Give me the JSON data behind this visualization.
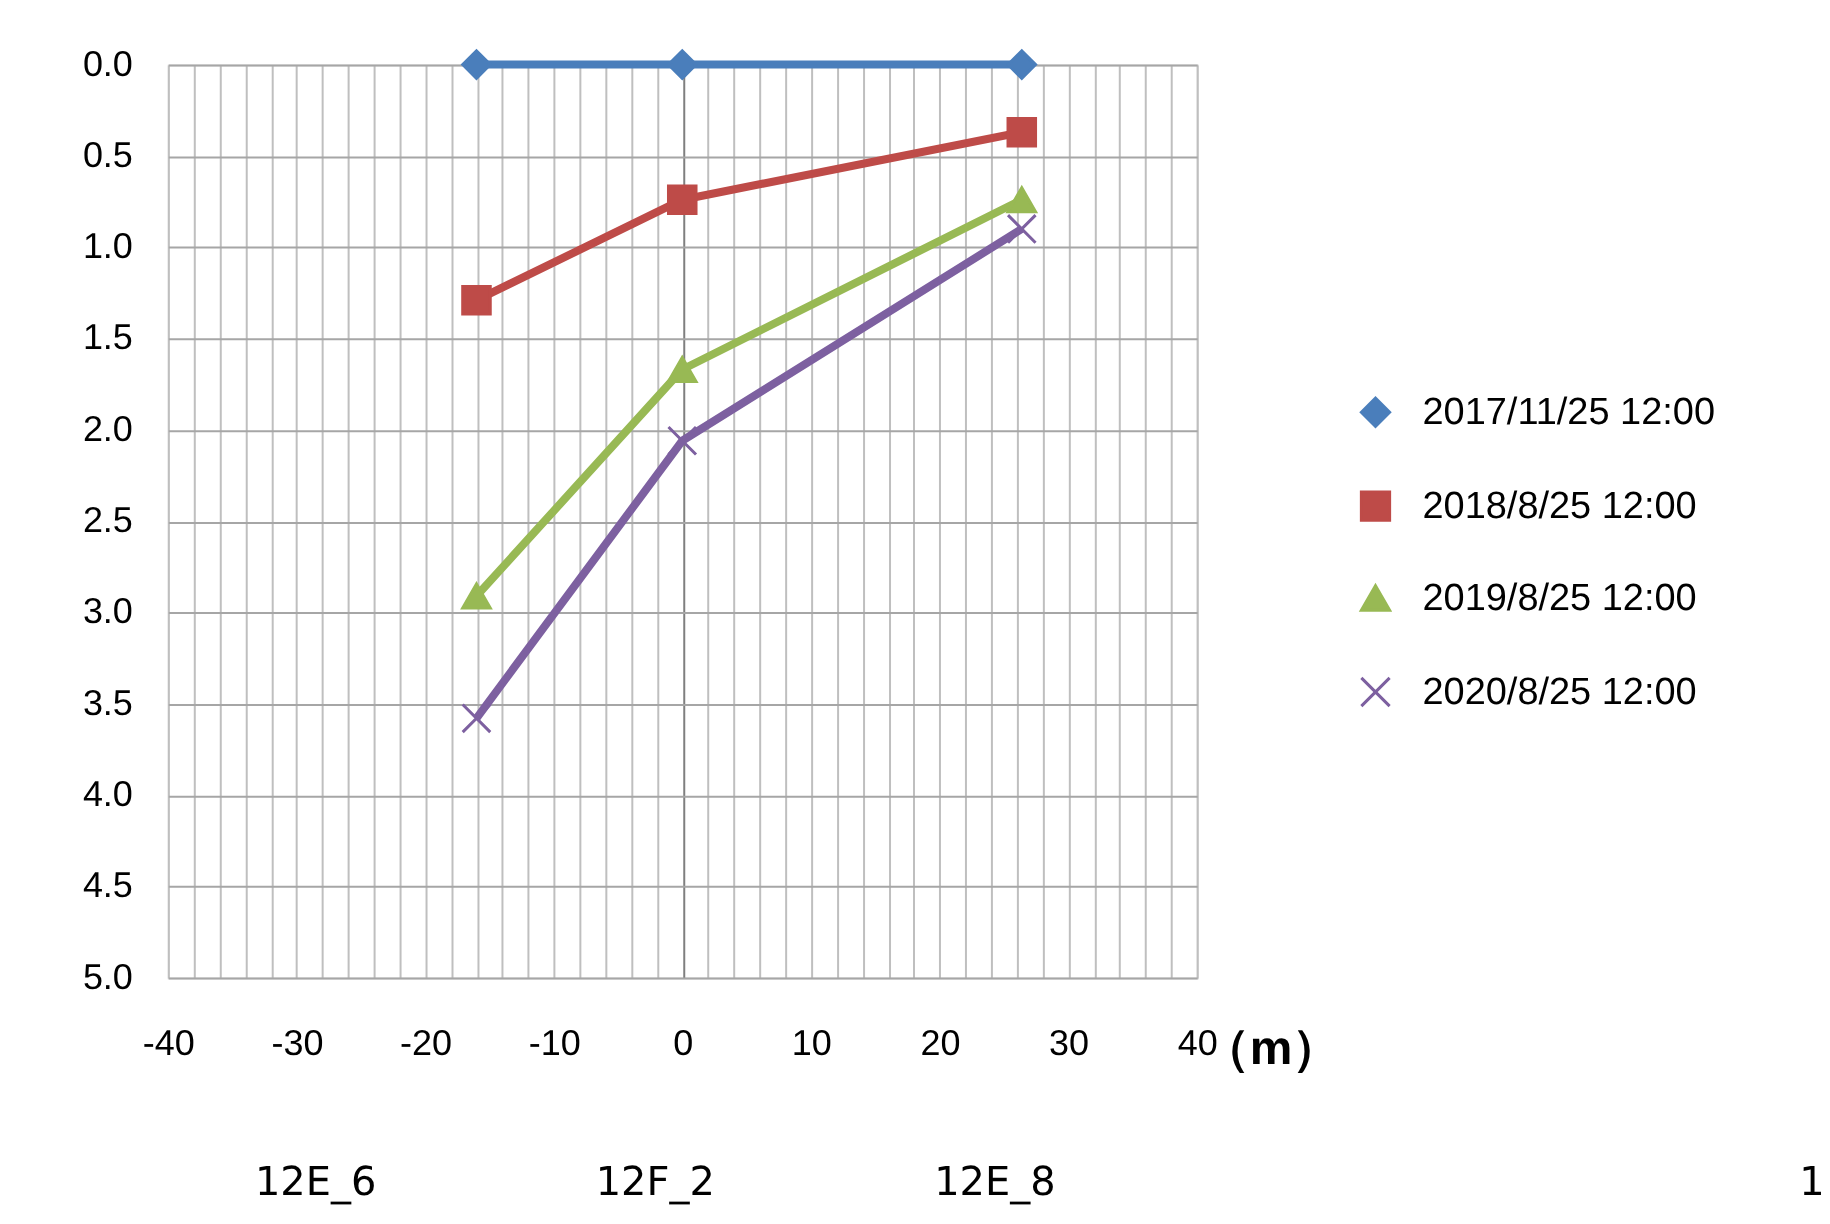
{
  "chart_data": {
    "type": "line",
    "xlabel": "（m）",
    "x": [
      -16,
      0,
      26.4
    ],
    "series": [
      {
        "name": "2017/11/25 12:00",
        "color": "#4a7ebb",
        "marker": "diamond",
        "values": [
          0,
          0,
          0
        ]
      },
      {
        "name": "2018/8/25 12:00",
        "color": "#be4b48",
        "marker": "square",
        "values": [
          1.29,
          0.74,
          0.37
        ]
      },
      {
        "name": "2019/8/25 12:00",
        "color": "#98b954",
        "marker": "triangle",
        "values": [
          2.91,
          1.67,
          0.74
        ]
      },
      {
        "name": "2020/8/25 12:00",
        "color": "#7d60a0",
        "marker": "cross",
        "values": [
          3.58,
          2.06,
          0.9
        ]
      }
    ],
    "xlim": [
      -40,
      40
    ],
    "xticks": [
      -40,
      {
        "value": -38,
        "label": null
      },
      {
        "value": -36,
        "label": null
      },
      {
        "value": -34,
        "label": null
      },
      {
        "value": -32,
        "label": null
      },
      -30,
      {
        "value": -28,
        "label": null
      },
      {
        "value": -26,
        "label": null
      },
      {
        "value": -24,
        "label": null
      },
      {
        "value": -22,
        "label": null
      },
      -20,
      {
        "value": -18,
        "label": null
      },
      {
        "value": -16,
        "label": null
      },
      {
        "value": -14,
        "label": null
      },
      {
        "value": -12,
        "label": null
      },
      -10,
      {
        "value": -8,
        "label": null
      },
      {
        "value": -6,
        "label": null
      },
      {
        "value": -4,
        "label": null
      },
      {
        "value": -2,
        "label": null
      },
      0,
      {
        "value": 2,
        "label": null
      },
      {
        "value": 4,
        "label": null
      },
      {
        "value": 6,
        "label": null
      },
      {
        "value": 8,
        "label": null
      },
      10,
      {
        "value": 12,
        "label": null
      },
      {
        "value": 14,
        "label": null
      },
      {
        "value": 16,
        "label": null
      },
      {
        "value": 18,
        "label": null
      },
      20,
      {
        "value": 22,
        "label": null
      },
      {
        "value": 24,
        "label": null
      },
      {
        "value": 26,
        "label": null
      },
      {
        "value": 28,
        "label": null
      },
      30,
      {
        "value": 32,
        "label": null
      },
      {
        "value": 34,
        "label": null
      },
      {
        "value": 36,
        "label": null
      },
      {
        "value": 38,
        "label": null
      },
      40
    ],
    "ylim": [
      5,
      0
    ],
    "yticks": [
      {
        "value": 0,
        "label": "0.0"
      },
      0.5,
      {
        "value": 1,
        "label": "1.0"
      },
      1.5,
      {
        "value": 2,
        "label": "2.0"
      },
      2.5,
      {
        "value": 3,
        "label": "3.0"
      },
      3.5,
      {
        "value": 4,
        "label": "4.0"
      },
      4.5,
      {
        "value": 5,
        "label": "5.0"
      }
    ],
    "grid": true,
    "legend": "right",
    "line_style": "solid",
    "annotations": [
      "12E_6",
      "12F_2",
      "12E_8",
      "1"
    ]
  }
}
